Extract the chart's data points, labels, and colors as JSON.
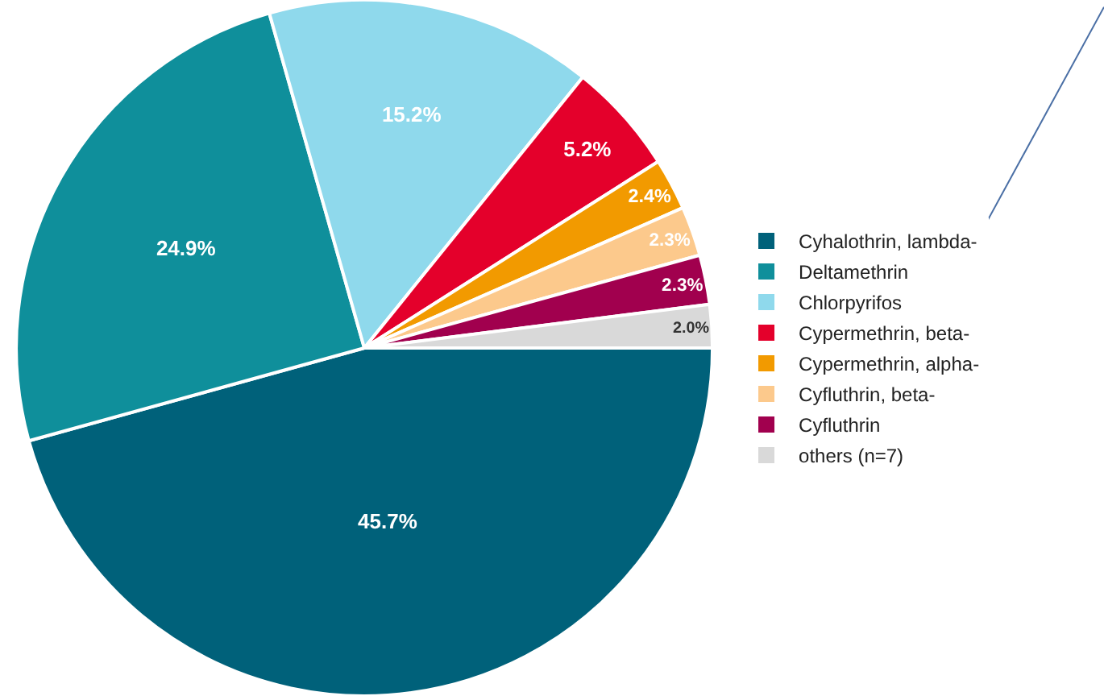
{
  "chart_data": {
    "type": "pie",
    "categories": [
      "Cyhalothrin, lambda-",
      "Deltamethrin",
      "Chlorpyrifos",
      "Cypermethrin, beta-",
      "Cypermethrin, alpha-",
      "Cyfluthrin, beta-",
      "Cyfluthrin",
      "others (n=7)"
    ],
    "values": [
      45.7,
      24.9,
      15.2,
      5.2,
      2.4,
      2.3,
      2.3,
      2.0
    ],
    "value_labels": [
      "45.7%",
      "24.9%",
      "15.2%",
      "5.2%",
      "2.4%",
      "2.3%",
      "2.3%",
      "2.0%"
    ],
    "colors": [
      "#00617a",
      "#0f8f9b",
      "#8fd9ec",
      "#e4002b",
      "#f29a00",
      "#fcc98c",
      "#a1004e",
      "#d9d9d9"
    ],
    "legend": "right"
  }
}
